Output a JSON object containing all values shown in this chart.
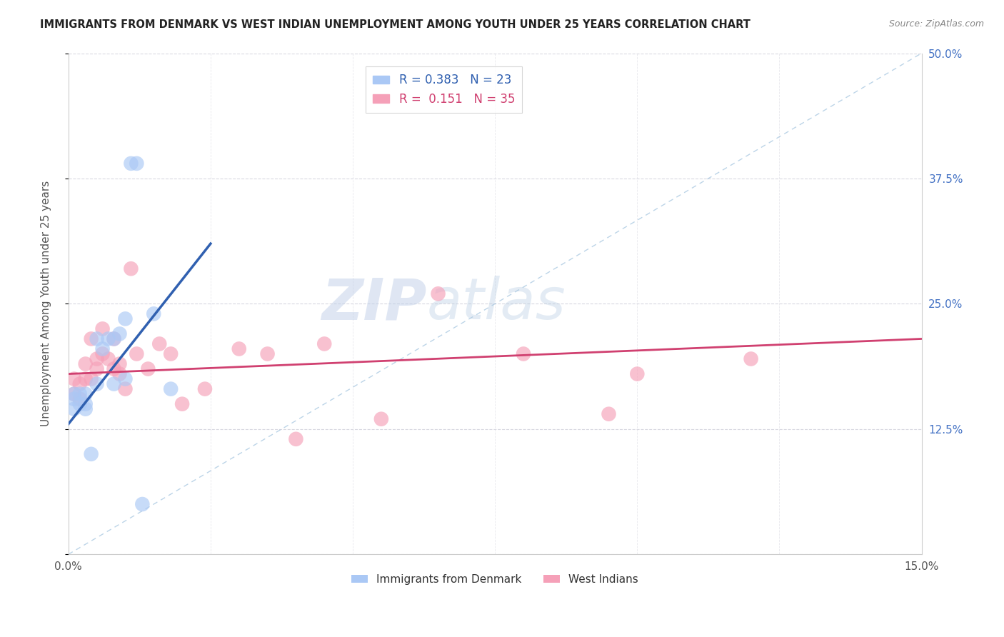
{
  "title": "IMMIGRANTS FROM DENMARK VS WEST INDIAN UNEMPLOYMENT AMONG YOUTH UNDER 25 YEARS CORRELATION CHART",
  "source": "Source: ZipAtlas.com",
  "ylabel": "Unemployment Among Youth under 25 years",
  "xlim": [
    0,
    0.15
  ],
  "ylim": [
    0,
    0.5
  ],
  "xtick_positions": [
    0.0,
    0.025,
    0.05,
    0.075,
    0.1,
    0.125,
    0.15
  ],
  "xtick_labels": [
    "0.0%",
    "",
    "",
    "",
    "",
    "",
    "15.0%"
  ],
  "ytick_positions": [
    0.0,
    0.125,
    0.25,
    0.375,
    0.5
  ],
  "ytick_labels_right": [
    "",
    "12.5%",
    "25.0%",
    "37.5%",
    "50.0%"
  ],
  "denmark_x": [
    0.001,
    0.001,
    0.001,
    0.002,
    0.002,
    0.003,
    0.003,
    0.003,
    0.004,
    0.005,
    0.005,
    0.006,
    0.007,
    0.008,
    0.008,
    0.009,
    0.01,
    0.01,
    0.011,
    0.012,
    0.013,
    0.015,
    0.018
  ],
  "denmark_y": [
    0.145,
    0.155,
    0.16,
    0.15,
    0.16,
    0.145,
    0.15,
    0.16,
    0.1,
    0.17,
    0.215,
    0.205,
    0.215,
    0.215,
    0.17,
    0.22,
    0.235,
    0.175,
    0.39,
    0.39,
    0.05,
    0.24,
    0.165
  ],
  "westindian_x": [
    0.001,
    0.001,
    0.002,
    0.002,
    0.003,
    0.003,
    0.004,
    0.004,
    0.005,
    0.005,
    0.006,
    0.006,
    0.007,
    0.008,
    0.008,
    0.009,
    0.009,
    0.01,
    0.011,
    0.012,
    0.014,
    0.016,
    0.018,
    0.02,
    0.024,
    0.03,
    0.035,
    0.04,
    0.045,
    0.055,
    0.065,
    0.08,
    0.095,
    0.1,
    0.12
  ],
  "westindian_y": [
    0.16,
    0.175,
    0.155,
    0.17,
    0.175,
    0.19,
    0.175,
    0.215,
    0.185,
    0.195,
    0.2,
    0.225,
    0.195,
    0.185,
    0.215,
    0.18,
    0.19,
    0.165,
    0.285,
    0.2,
    0.185,
    0.21,
    0.2,
    0.15,
    0.165,
    0.205,
    0.2,
    0.115,
    0.21,
    0.135,
    0.26,
    0.2,
    0.14,
    0.18,
    0.195
  ],
  "denmark_color": "#aac8f5",
  "westindian_color": "#f5a0b8",
  "denmark_line_color": "#3060b0",
  "westindian_line_color": "#d04070",
  "diag_line_color": "#90b8d8",
  "denmark_R": "0.383",
  "denmark_N": "23",
  "westindian_R": "0.151",
  "westindian_N": "35",
  "watermark_zip": "ZIP",
  "watermark_atlas": "atlas",
  "background_color": "#ffffff",
  "grid_color": "#d8d8e0"
}
